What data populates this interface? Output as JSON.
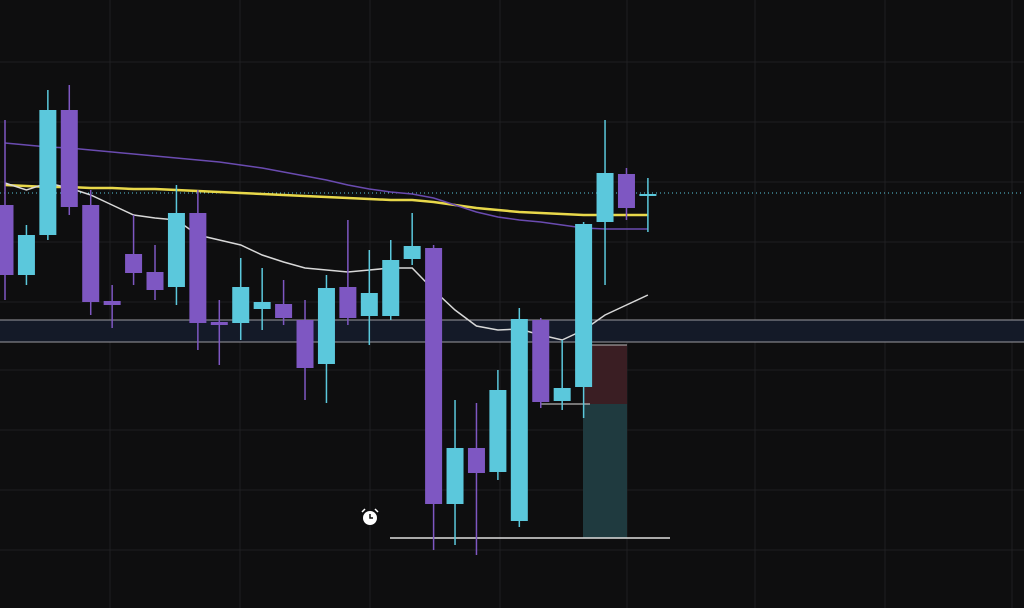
{
  "chart_data": {
    "type": "candlestick",
    "ylim": [
      0,
      608
    ],
    "up_color": "#5bc8dc",
    "down_color": "#7e57c2",
    "open": [
      403,
      333,
      373,
      498,
      403,
      307,
      354,
      336,
      321,
      395,
      286,
      285,
      299,
      304,
      288,
      244,
      321,
      292,
      292,
      349,
      360,
      104,
      160,
      136,
      87,
      288,
      207,
      221,
      386,
      434,
      412
    ],
    "high": [
      488,
      383,
      518,
      523,
      418,
      323,
      393,
      363,
      423,
      418,
      308,
      350,
      340,
      328,
      308,
      333,
      388,
      358,
      368,
      395,
      363,
      208,
      205,
      238,
      300,
      290,
      268,
      386,
      488,
      440,
      430
    ],
    "low": [
      308,
      323,
      368,
      393,
      293,
      280,
      323,
      308,
      303,
      258,
      243,
      268,
      278,
      283,
      208,
      205,
      283,
      263,
      288,
      343,
      58,
      63,
      53,
      128,
      81,
      200,
      198,
      190,
      323,
      388,
      376
    ],
    "close": [
      333,
      373,
      498,
      401,
      306,
      303,
      335,
      318,
      395,
      285,
      283,
      321,
      306,
      290,
      240,
      320,
      290,
      315,
      348,
      362,
      104,
      160,
      135,
      218,
      289,
      206,
      220,
      384,
      435,
      400,
      414
    ],
    "series": [
      {
        "color": "#e8d84a",
        "values": [
          423,
          422,
          421,
          421,
          420,
          420,
          419,
          419,
          418,
          417,
          416,
          415,
          414,
          413,
          412,
          411,
          410,
          409,
          408,
          408,
          406,
          403,
          400,
          398,
          396,
          395,
          394,
          393,
          393,
          393,
          393
        ]
      },
      {
        "color": "#6a4bb0",
        "values": [
          465,
          463,
          461,
          460,
          458,
          456,
          454,
          452,
          450,
          448,
          446,
          443,
          440,
          436,
          432,
          428,
          423,
          419,
          416,
          414,
          410,
          403,
          396,
          391,
          388,
          386,
          383,
          380,
          379,
          379,
          379
        ]
      },
      {
        "color": "#d8d8d8",
        "values": [
          425,
          418,
          425,
          420,
          413,
          403,
          393,
          390,
          388,
          373,
          368,
          363,
          353,
          346,
          340,
          338,
          336,
          338,
          340,
          340,
          318,
          298,
          282,
          278,
          279,
          273,
          268,
          278,
          293,
          303,
          313
        ]
      }
    ]
  }
}
